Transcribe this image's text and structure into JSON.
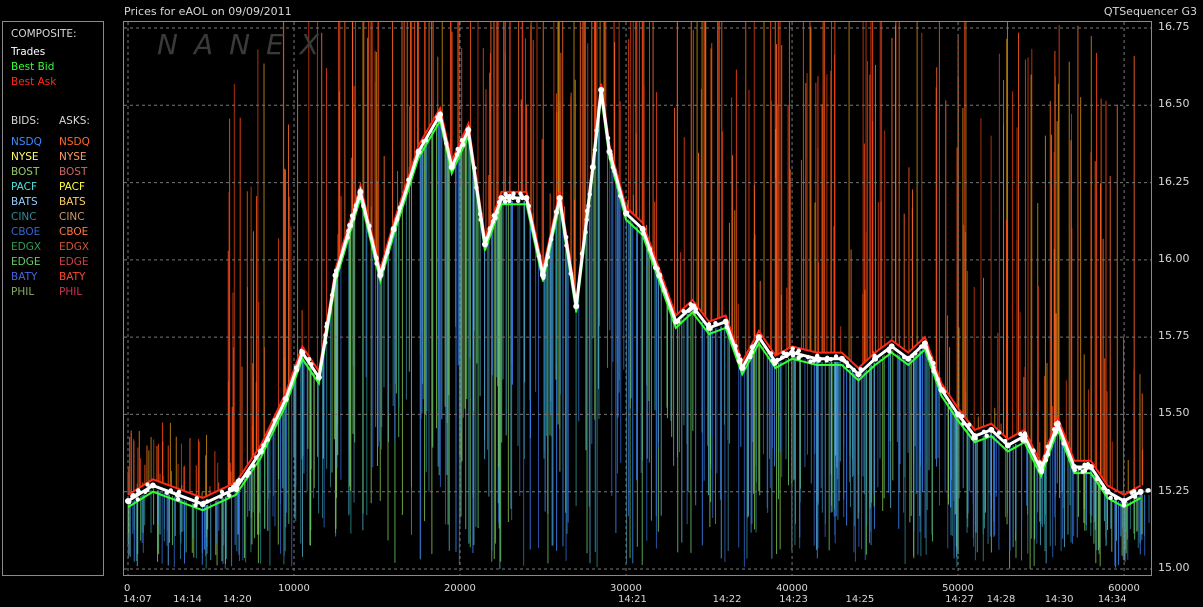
{
  "header": {
    "title": "Prices for  eAOL  on  09/09/2011",
    "app": "QTSequencer G3"
  },
  "watermark": "NANEX",
  "legend": {
    "composite_title": "COMPOSITE:",
    "composite": [
      {
        "label": "Trades",
        "color": "#ffffff"
      },
      {
        "label": "Best Bid",
        "color": "#33ff33"
      },
      {
        "label": "Best Ask",
        "color": "#ff2a1a"
      }
    ],
    "bids_title": "BIDS:",
    "asks_title": "ASKS:",
    "exchanges": [
      {
        "bid": "NSDQ",
        "ask": "NSDQ",
        "bid_color": "#3d8cff",
        "ask_color": "#ff6a2a"
      },
      {
        "bid": "NYSE",
        "ask": "NYSE",
        "bid_color": "#ffff66",
        "ask_color": "#ff9966"
      },
      {
        "bid": "BOST",
        "ask": "BOST",
        "bid_color": "#99cc66",
        "ask_color": "#cc6666"
      },
      {
        "bid": "PACF",
        "ask": "PACF",
        "bid_color": "#55e0e0",
        "ask_color": "#ffff44"
      },
      {
        "bid": "BATS",
        "ask": "BATS",
        "bid_color": "#99ccff",
        "ask_color": "#ffcc66"
      },
      {
        "bid": "CINC",
        "ask": "CINC",
        "bid_color": "#338899",
        "ask_color": "#cc9966"
      },
      {
        "bid": "CBOE",
        "ask": "CBOE",
        "bid_color": "#3366cc",
        "ask_color": "#ff7744"
      },
      {
        "bid": "EDGX",
        "ask": "EDGX",
        "bid_color": "#339955",
        "ask_color": "#cc5533"
      },
      {
        "bid": "EDGE",
        "ask": "EDGE",
        "bid_color": "#66cc66",
        "ask_color": "#cc4444"
      },
      {
        "bid": "BATY",
        "ask": "BATY",
        "bid_color": "#4466dd",
        "ask_color": "#ff4433"
      },
      {
        "bid": "PHIL",
        "ask": "PHIL",
        "bid_color": "#88aa66",
        "ask_color": "#cc3355"
      }
    ]
  },
  "chart_data": {
    "type": "line",
    "ylim": [
      15.0,
      16.75
    ],
    "xlim": [
      0,
      61500
    ],
    "y_ticks": [
      "16.75",
      "16.50",
      "16.25",
      "16.00",
      "15.75",
      "15.50",
      "15.25",
      "15.00"
    ],
    "x_ticks": [
      {
        "label": "0",
        "x": 0
      },
      {
        "label": "10000",
        "x": 10000
      },
      {
        "label": "20000",
        "x": 20000
      },
      {
        "label": "30000",
        "x": 30000
      },
      {
        "label": "40000",
        "x": 40000
      },
      {
        "label": "50000",
        "x": 50000
      },
      {
        "label": "60000",
        "x": 60000
      }
    ],
    "time_ticks": [
      {
        "label": "14:07",
        "x": 0
      },
      {
        "label": "14:14",
        "x": 3500
      },
      {
        "label": "14:20",
        "x": 6500
      },
      {
        "label": "14:21",
        "x": 30300
      },
      {
        "label": "14:22",
        "x": 36000
      },
      {
        "label": "14:23",
        "x": 40000
      },
      {
        "label": "14:25",
        "x": 44000
      },
      {
        "label": "14:27",
        "x": 50000
      },
      {
        "label": "14:28",
        "x": 52500
      },
      {
        "label": "14:30",
        "x": 56000
      },
      {
        "label": "14:34",
        "x": 59200
      }
    ],
    "series": [
      {
        "name": "Trades",
        "x": [
          0,
          1500,
          3000,
          4500,
          6500,
          8000,
          9500,
          10500,
          11500,
          12500,
          14000,
          15200,
          16000,
          17500,
          18800,
          19500,
          20500,
          21500,
          22500,
          24000,
          25000,
          26000,
          27000,
          28000,
          28500,
          29000,
          30000,
          31000,
          32000,
          33000,
          34000,
          35000,
          36000,
          37000,
          38000,
          39000,
          40000,
          41500,
          43000,
          44000,
          45000,
          46000,
          47000,
          48000,
          49000,
          50000,
          51000,
          52000,
          53000,
          54000,
          55000,
          56000,
          57000,
          58000,
          59000,
          60000,
          61000
        ],
        "y": [
          15.22,
          15.27,
          15.24,
          15.21,
          15.26,
          15.38,
          15.55,
          15.7,
          15.62,
          15.95,
          16.22,
          15.95,
          16.1,
          16.35,
          16.47,
          16.3,
          16.42,
          16.05,
          16.2,
          16.2,
          15.95,
          16.2,
          15.85,
          16.3,
          16.55,
          16.35,
          16.15,
          16.1,
          15.95,
          15.8,
          15.85,
          15.78,
          15.8,
          15.65,
          15.75,
          15.67,
          15.7,
          15.68,
          15.68,
          15.63,
          15.68,
          15.72,
          15.68,
          15.73,
          15.58,
          15.5,
          15.43,
          15.45,
          15.4,
          15.43,
          15.32,
          15.47,
          15.33,
          15.33,
          15.25,
          15.22,
          15.25
        ]
      }
    ]
  }
}
